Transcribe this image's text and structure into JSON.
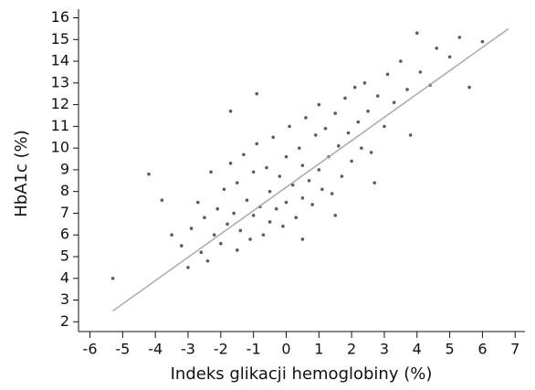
{
  "chart_data": {
    "type": "scatter",
    "x_label": "Indeks glikacji hemoglobiny (%)",
    "y_label": "HbA1c (%)",
    "xlim": [
      -6.35,
      7.3
    ],
    "ylim": [
      1.55,
      16.4
    ],
    "xticks": [
      -6,
      -5,
      -4,
      -3,
      -2,
      -1,
      0,
      1,
      2,
      3,
      4,
      5,
      6,
      7
    ],
    "yticks": [
      2,
      3,
      4,
      5,
      6,
      7,
      8,
      9,
      10,
      11,
      12,
      13,
      14,
      15,
      16
    ],
    "series": [
      {
        "type": "scatter",
        "color": "#333333",
        "x": [
          -5.3,
          -4.2,
          -3.8,
          -3.5,
          -3.2,
          -3.0,
          -2.9,
          -2.7,
          -2.6,
          -2.5,
          -2.3,
          -2.2,
          -2.1,
          -2.0,
          -1.9,
          -1.8,
          -1.7,
          -1.6,
          -1.5,
          -1.5,
          -1.4,
          -1.3,
          -1.2,
          -1.1,
          -1.0,
          -1.0,
          -0.9,
          -0.8,
          -0.7,
          -0.6,
          -0.5,
          -0.5,
          -0.4,
          -0.3,
          -0.2,
          -0.1,
          0.0,
          0.0,
          0.1,
          0.2,
          0.3,
          0.4,
          0.5,
          0.5,
          0.6,
          0.7,
          0.8,
          0.9,
          1.0,
          1.0,
          1.1,
          1.2,
          1.3,
          1.4,
          1.5,
          1.6,
          1.7,
          1.8,
          1.9,
          2.0,
          2.1,
          2.2,
          2.3,
          2.4,
          2.5,
          2.6,
          2.8,
          3.0,
          3.1,
          3.3,
          3.5,
          3.7,
          4.0,
          4.1,
          4.4,
          4.6,
          5.0,
          5.3,
          5.6,
          6.0,
          -1.7,
          0.5,
          -2.4,
          1.5,
          3.8,
          -0.9,
          2.7
        ],
        "values": [
          4.0,
          8.8,
          7.6,
          6.0,
          5.5,
          4.5,
          6.3,
          7.5,
          5.2,
          6.8,
          8.9,
          6.0,
          7.2,
          5.6,
          8.1,
          6.5,
          9.3,
          7.0,
          5.3,
          8.4,
          6.2,
          9.7,
          7.6,
          5.8,
          8.9,
          6.9,
          10.2,
          7.3,
          6.0,
          9.1,
          8.0,
          6.6,
          10.5,
          7.2,
          8.7,
          6.4,
          9.6,
          7.5,
          11.0,
          8.3,
          6.8,
          10.0,
          7.7,
          9.2,
          11.4,
          8.5,
          7.4,
          10.6,
          9.0,
          12.0,
          8.1,
          10.9,
          9.6,
          7.9,
          11.6,
          10.1,
          8.7,
          12.3,
          10.7,
          9.4,
          12.8,
          11.2,
          10.0,
          13.0,
          11.7,
          9.8,
          12.4,
          11.0,
          13.4,
          12.1,
          14.0,
          12.7,
          15.3,
          13.5,
          12.9,
          14.6,
          14.2,
          15.1,
          12.8,
          14.9,
          11.7,
          5.8,
          4.8,
          6.9,
          10.6,
          12.5,
          8.4
        ]
      },
      {
        "type": "line",
        "color": "#aaaaaa",
        "x": [
          -5.3,
          6.8
        ],
        "values": [
          2.5,
          15.5
        ]
      }
    ]
  }
}
